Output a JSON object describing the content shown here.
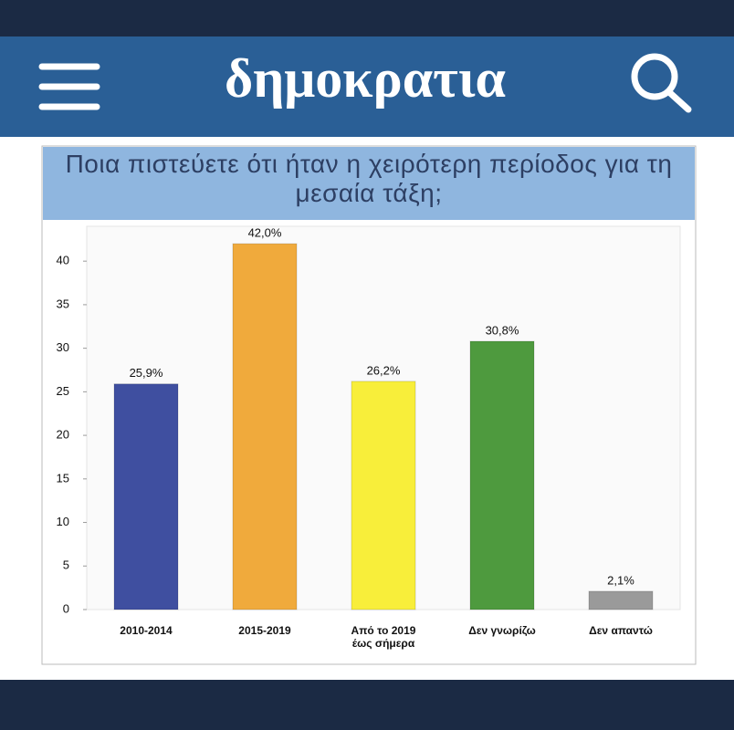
{
  "header": {
    "title": "δημοκρατια"
  },
  "chart_data": {
    "type": "bar",
    "title": "Ποια πιστεύετε ότι ήταν η χειρότερη περίοδος για τη μεσαία τάξη;",
    "categories": [
      "2010-2014",
      "2015-2019",
      "Από το 2019 έως σήμερα",
      "Δεν γνωρίζω",
      "Δεν απαντώ"
    ],
    "values": [
      25.9,
      42.0,
      26.2,
      30.8,
      2.1
    ],
    "value_labels": [
      "25,9%",
      "42,0%",
      "26,2%",
      "30,8%",
      "2,1%"
    ],
    "colors": [
      "#3f4fa0",
      "#f0aa3c",
      "#f8ee3a",
      "#4e9a3e",
      "#9a9a9a"
    ],
    "ylim": [
      0,
      44
    ],
    "yticks": [
      0,
      5,
      10,
      15,
      20,
      25,
      30,
      35,
      40
    ]
  }
}
